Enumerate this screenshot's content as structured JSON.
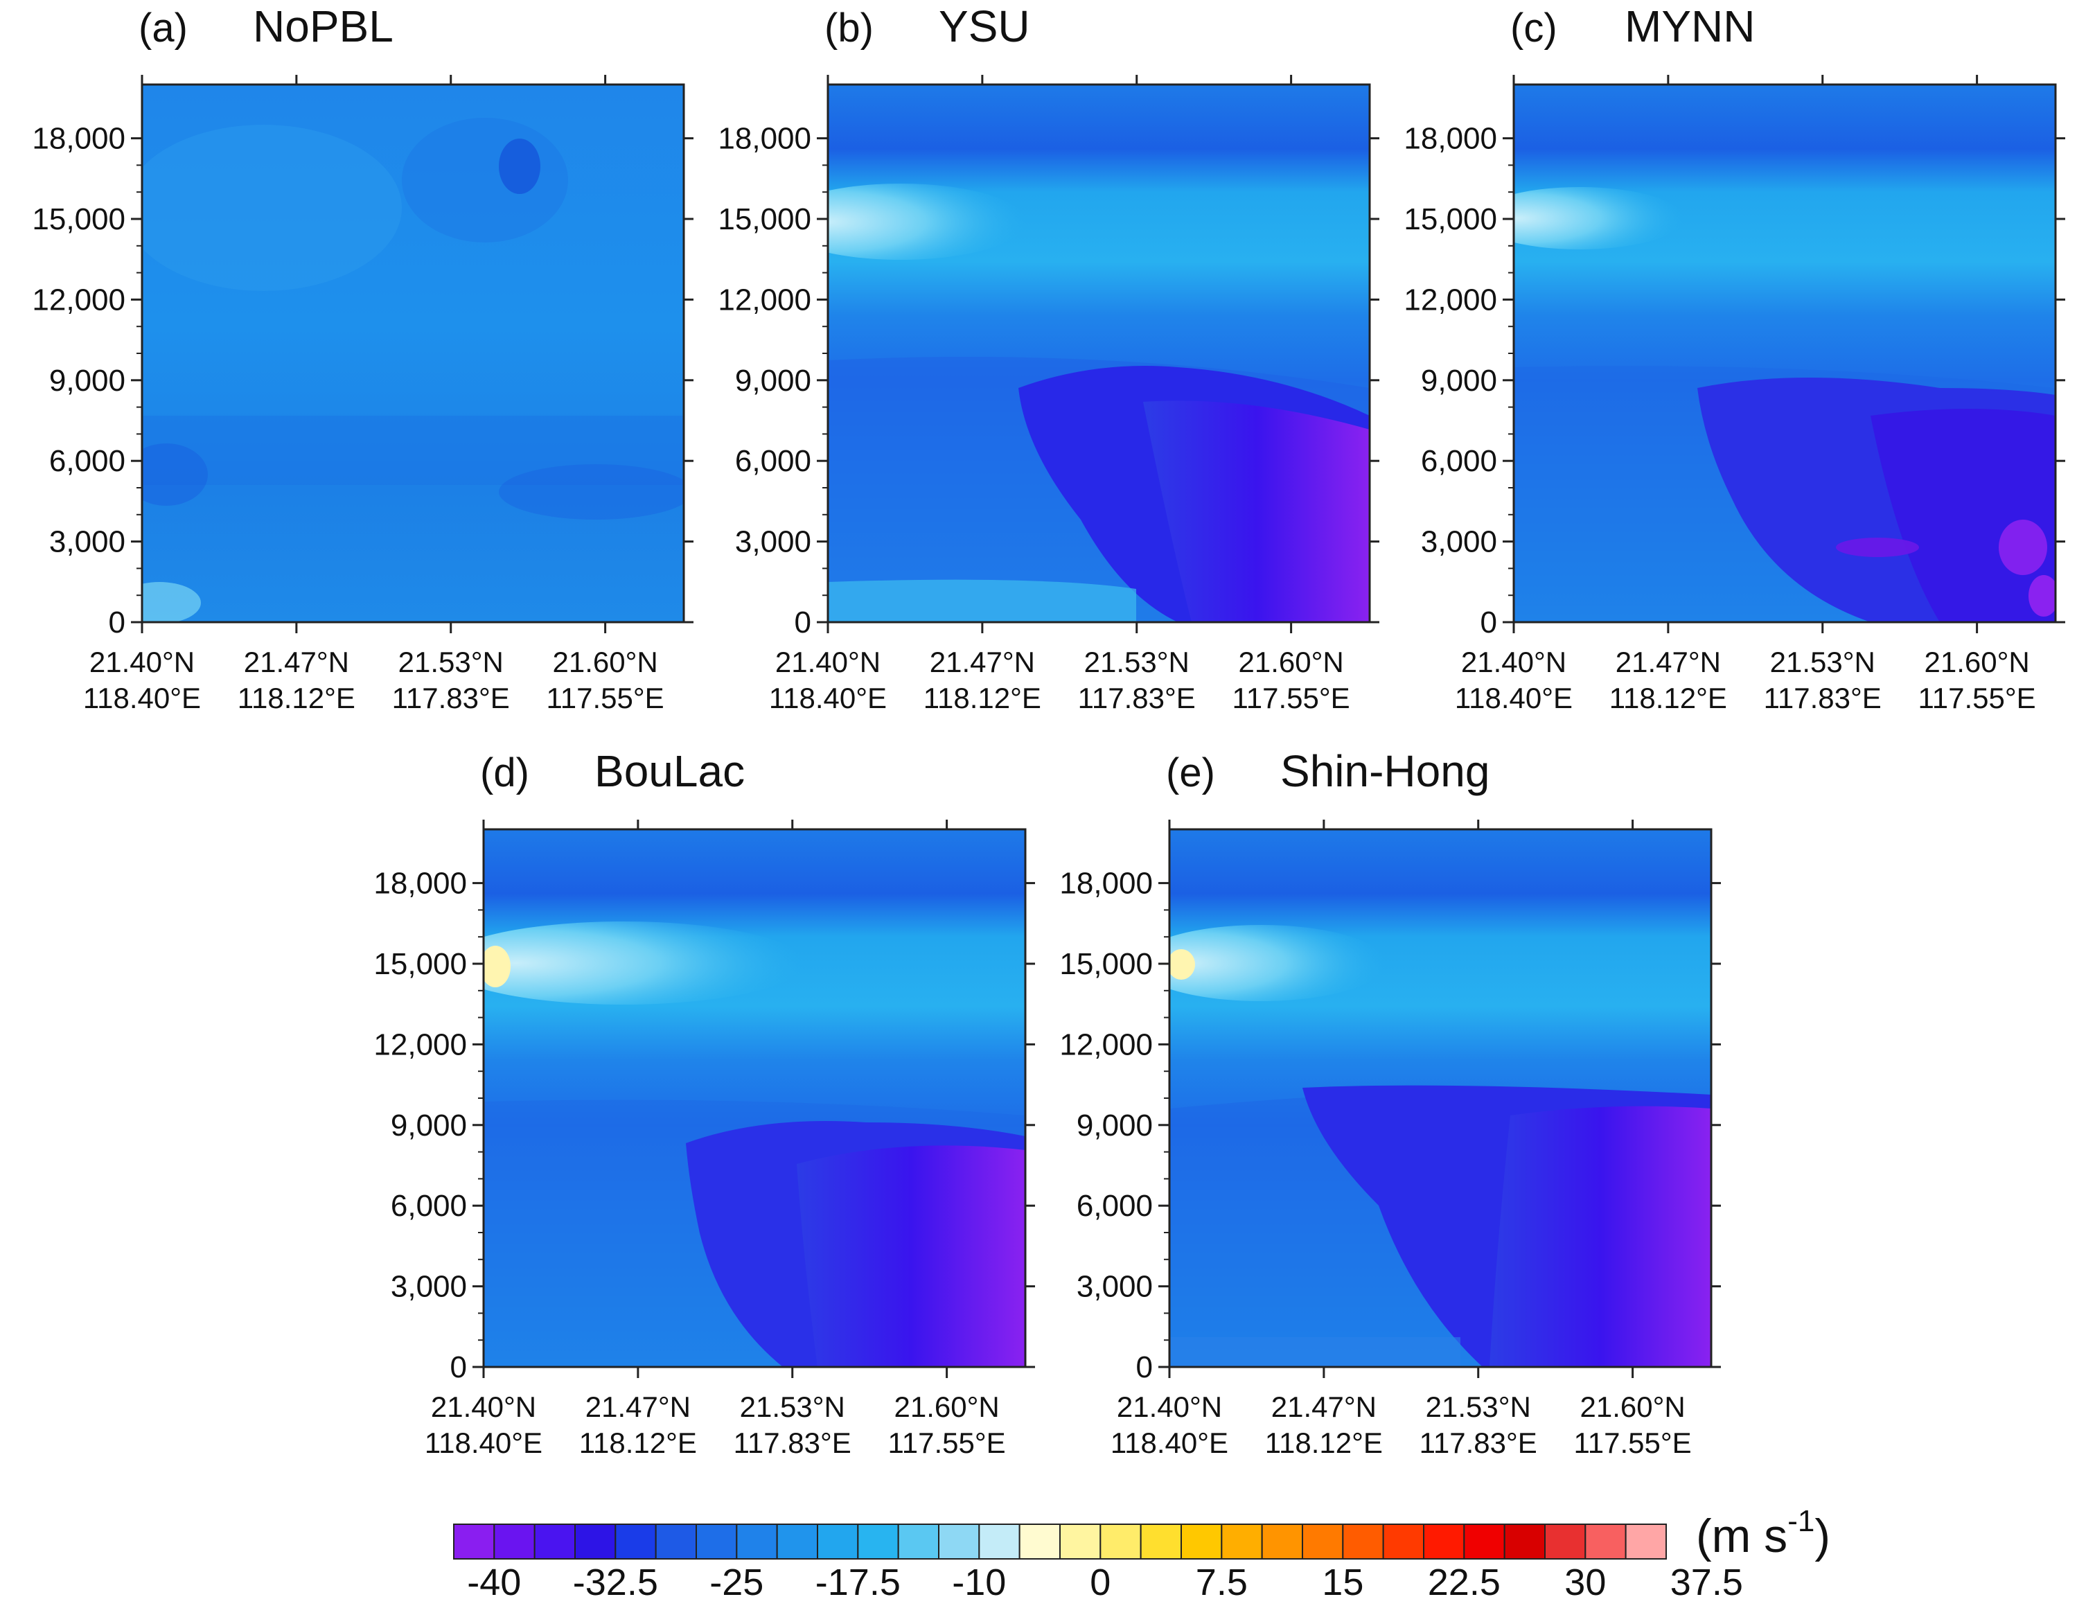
{
  "chart_data": {
    "type": "heatmap",
    "variable_unit": "(m s",
    "variable_unit_exp": "-1",
    "variable_unit_close": ")",
    "y_ticks": [
      "0",
      "3,000",
      "6,000",
      "9,000",
      "12,000",
      "15,000",
      "18,000"
    ],
    "y_range": [
      0,
      20000
    ],
    "x_ticks": [
      {
        "lat": "21.40°N",
        "lon": "118.40°E"
      },
      {
        "lat": "21.47°N",
        "lon": "118.12°E"
      },
      {
        "lat": "21.53°N",
        "lon": "117.83°E"
      },
      {
        "lat": "21.60°N",
        "lon": "117.55°E"
      }
    ],
    "colorbar": {
      "labels": [
        "-40",
        "-32.5",
        "-25",
        "-17.5",
        "-10",
        "0",
        "7.5",
        "15",
        "22.5",
        "30",
        "37.5"
      ],
      "colors": [
        "#8a1ef0",
        "#6a14f0",
        "#4a14f0",
        "#2d14e6",
        "#1a3ce8",
        "#1e5ae6",
        "#1e6ee8",
        "#1f82ea",
        "#2094ec",
        "#22a6ee",
        "#28b4f0",
        "#5ac8f2",
        "#8ed8f4",
        "#c4ecf8",
        "#fffbd0",
        "#fff5a0",
        "#ffec6a",
        "#ffdf2e",
        "#ffc800",
        "#ffae00",
        "#ff9400",
        "#ff7a00",
        "#ff5c00",
        "#ff3a00",
        "#ff1a00",
        "#f00000",
        "#d80000",
        "#e83030",
        "#f86060",
        "#ffa6a6"
      ],
      "unit": "(m s-1)"
    },
    "panels": [
      {
        "label": "(a)",
        "title": "NoPBL",
        "summary": "uniform weak easterly, -15 to -20 m s-1 throughout",
        "levels": [
          {
            "from": 0,
            "to": 20000,
            "value": -18
          }
        ]
      },
      {
        "label": "(b)",
        "title": "YSU",
        "summary": "strongest jet below 9 km on east side up to -40 m s-1; weak winds near 15 km",
        "levels": [
          {
            "z": 18500,
            "value": -28
          },
          {
            "z": 15000,
            "value": -6
          },
          {
            "z": 11000,
            "value": -22
          },
          {
            "z": 6000,
            "value": -40
          },
          {
            "z": 1500,
            "value": -40
          }
        ]
      },
      {
        "label": "(c)",
        "title": "MYNN",
        "summary": "jet core -35 m s-1 between 2 and 8 km on east side",
        "levels": [
          {
            "z": 18500,
            "value": -28
          },
          {
            "z": 15000,
            "value": -8
          },
          {
            "z": 11000,
            "value": -20
          },
          {
            "z": 6000,
            "value": -35
          },
          {
            "z": 1500,
            "value": -37
          }
        ]
      },
      {
        "label": "(d)",
        "title": "BouLac",
        "summary": "jet up to -40 m s-1 below 8 km on east side",
        "levels": [
          {
            "z": 18500,
            "value": -28
          },
          {
            "z": 15000,
            "value": -5
          },
          {
            "z": 11000,
            "value": -20
          },
          {
            "z": 6000,
            "value": -40
          },
          {
            "z": 1500,
            "value": -40
          }
        ]
      },
      {
        "label": "(e)",
        "title": "Shin-Hong",
        "summary": "jet up to -40 m s-1 below 9 km on east side",
        "levels": [
          {
            "z": 18500,
            "value": -28
          },
          {
            "z": 15000,
            "value": -6
          },
          {
            "z": 11000,
            "value": -20
          },
          {
            "z": 6000,
            "value": -38
          },
          {
            "z": 1500,
            "value": -40
          }
        ]
      }
    ]
  }
}
